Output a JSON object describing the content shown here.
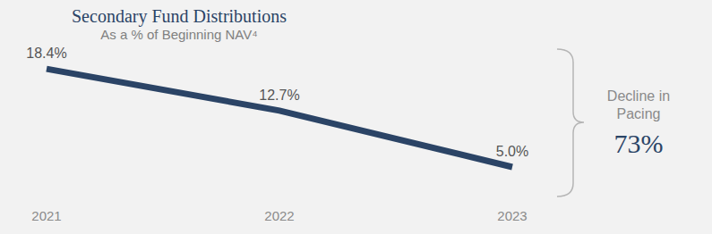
{
  "chart_data": {
    "type": "line",
    "title": "Secondary Fund Distributions",
    "subtitle": "As a % of Beginning NAV⁴",
    "categories": [
      "2021",
      "2022",
      "2023"
    ],
    "values": [
      18.4,
      12.7,
      5.0
    ],
    "value_labels": [
      "18.4%",
      "12.7%",
      "5.0%"
    ],
    "color": "#2b4466",
    "ylim": [
      0,
      20
    ],
    "yticks": [
      0,
      20
    ],
    "grid": false,
    "data_labels": true,
    "tick_labels": "x",
    "annotations": [
      "Decline in Pacing",
      "73%"
    ]
  }
}
